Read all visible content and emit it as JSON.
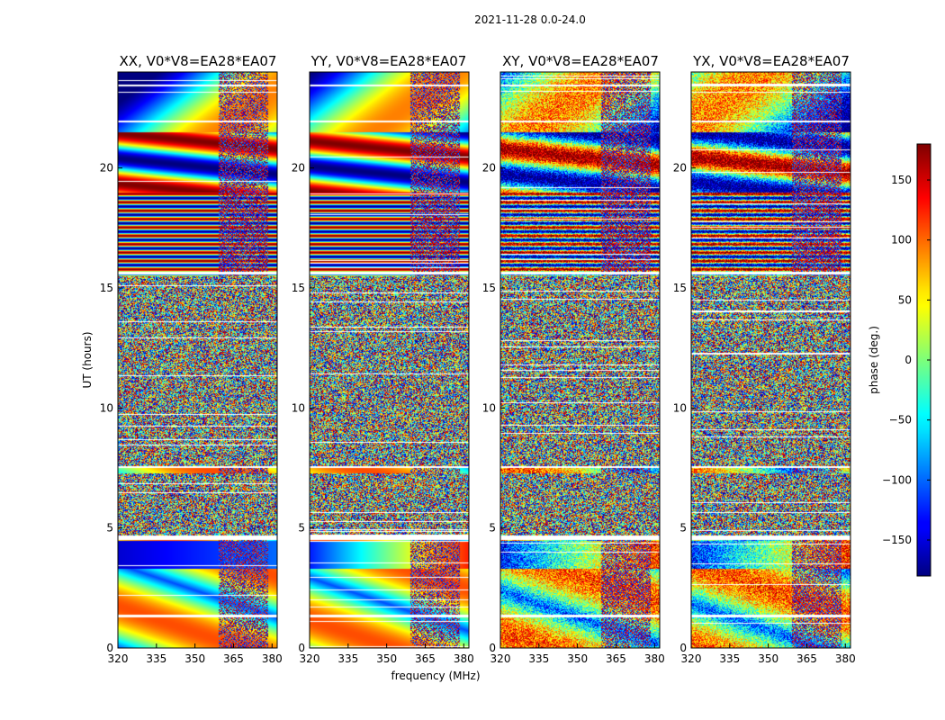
{
  "chart_data": {
    "type": "heatmap",
    "suptitle": "2021-11-28 0.0-24.0",
    "xlabel": "frequency (MHz)",
    "ylabel": "UT (hours)",
    "xlim": [
      320,
      382
    ],
    "ylim": [
      0,
      24
    ],
    "xticks": [
      320,
      335,
      350,
      365,
      380
    ],
    "yticks": [
      0,
      5,
      10,
      15,
      20
    ],
    "panels": [
      {
        "title": "XX, V0*V8=EA28*EA07"
      },
      {
        "title": "YY, V0*V8=EA28*EA07"
      },
      {
        "title": "XY, V0*V8=EA28*EA07"
      },
      {
        "title": "YX, V0*V8=EA28*EA07"
      }
    ],
    "colorbar": {
      "label": "phase (deg.)",
      "range": [
        -180,
        180
      ],
      "ticks": [
        150,
        100,
        50,
        0,
        -50,
        -100,
        -150
      ],
      "tick_labels": [
        "150",
        "100",
        "50",
        "0",
        "−50",
        "−100",
        "−150"
      ],
      "colormap": "jet"
    }
  }
}
